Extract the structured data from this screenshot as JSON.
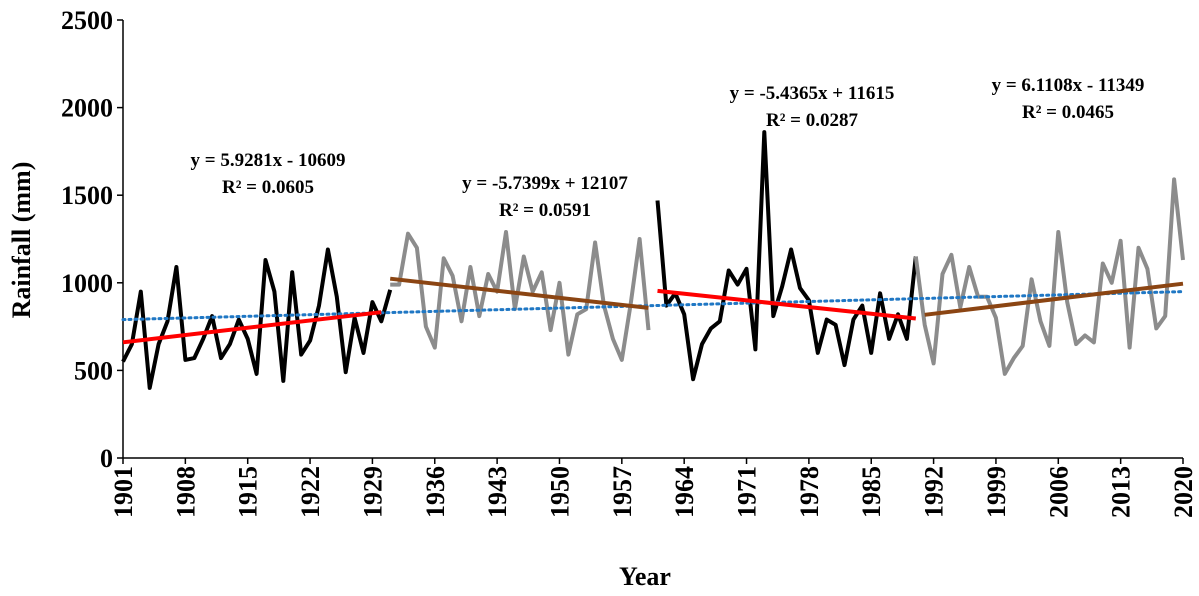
{
  "chart_data": {
    "type": "line",
    "xlabel": "Year",
    "ylabel": "Rainfall (mm)",
    "xlim": [
      1901,
      2020
    ],
    "xticks": [
      1901,
      1908,
      1915,
      1922,
      1929,
      1936,
      1943,
      1950,
      1957,
      1964,
      1971,
      1978,
      1985,
      1992,
      1999,
      2006,
      2013,
      2020
    ],
    "ylim": [
      0,
      2500
    ],
    "yticks": [
      0,
      500,
      1000,
      1500,
      2000,
      2500
    ],
    "series": [
      {
        "color": "#000000",
        "x": [
          1901,
          1902,
          1903,
          1904,
          1905,
          1906,
          1907,
          1908,
          1909,
          1910,
          1911,
          1912,
          1913,
          1914,
          1915,
          1916,
          1917,
          1918,
          1919,
          1920,
          1921,
          1922,
          1923,
          1924,
          1925,
          1926,
          1927,
          1928,
          1929,
          1930,
          1931
        ],
        "values": [
          550,
          650,
          950,
          400,
          650,
          780,
          1090,
          560,
          570,
          680,
          810,
          570,
          650,
          790,
          680,
          480,
          1130,
          950,
          440,
          1060,
          590,
          670,
          870,
          1190,
          920,
          490,
          800,
          600,
          890,
          780,
          960
        ]
      },
      {
        "color": "#8c8c8c",
        "x": [
          1931,
          1932,
          1933,
          1934,
          1935,
          1936,
          1937,
          1938,
          1939,
          1940,
          1941,
          1942,
          1943,
          1944,
          1945,
          1946,
          1947,
          1948,
          1949,
          1950,
          1951,
          1952,
          1953,
          1954,
          1955,
          1956,
          1957,
          1958,
          1959,
          1960
        ],
        "values": [
          990,
          990,
          1280,
          1200,
          750,
          630,
          1140,
          1040,
          780,
          1090,
          810,
          1050,
          950,
          1290,
          850,
          1150,
          950,
          1060,
          730,
          1000,
          590,
          820,
          850,
          1230,
          870,
          680,
          560,
          880,
          1250,
          730
        ]
      },
      {
        "color": "#000000",
        "x": [
          1961,
          1962,
          1963,
          1964,
          1965,
          1966,
          1967,
          1968,
          1969,
          1970,
          1971,
          1972,
          1973,
          1974,
          1975,
          1976,
          1977,
          1978,
          1979,
          1980,
          1981,
          1982,
          1983,
          1984,
          1985,
          1986,
          1987,
          1988,
          1989,
          1990
        ],
        "values": [
          1470,
          870,
          940,
          820,
          450,
          650,
          740,
          780,
          1070,
          990,
          1080,
          620,
          1860,
          810,
          980,
          1190,
          970,
          900,
          600,
          790,
          760,
          530,
          790,
          870,
          600,
          940,
          680,
          820,
          680,
          1150
        ]
      },
      {
        "color": "#8c8c8c",
        "x": [
          1990,
          1991,
          1992,
          1993,
          1994,
          1995,
          1996,
          1997,
          1998,
          1999,
          2000,
          2001,
          2002,
          2003,
          2004,
          2005,
          2006,
          2007,
          2008,
          2009,
          2010,
          2011,
          2012,
          2013,
          2014,
          2015,
          2016,
          2017,
          2018,
          2019,
          2020
        ],
        "values": [
          1150,
          760,
          540,
          1050,
          1160,
          860,
          1090,
          920,
          920,
          800,
          480,
          570,
          640,
          1020,
          780,
          640,
          1290,
          890,
          650,
          700,
          660,
          1110,
          1000,
          1240,
          630,
          1200,
          1080,
          740,
          810,
          1590,
          1130
        ]
      }
    ],
    "trends": [
      {
        "color": "#1f77c4",
        "style": "dotted",
        "x": [
          1901,
          2020
        ],
        "values": [
          790,
          950
        ]
      },
      {
        "color": "#ff0000",
        "x": [
          1901,
          1930
        ],
        "values": [
          660.3,
          832.0
        ]
      },
      {
        "color": "#8b4513",
        "x": [
          1931,
          1960
        ],
        "values": [
          1023.3,
          857.0
        ]
      },
      {
        "color": "#ff0000",
        "x": [
          1961,
          1990
        ],
        "values": [
          954.0,
          796.4
        ]
      },
      {
        "color": "#8b4513",
        "x": [
          1991,
          2020
        ],
        "values": [
          817.6,
          994.8
        ]
      }
    ],
    "annotations": [
      [
        "y = 5.9281x - 10609",
        "R² = 0.0605"
      ],
      [
        "y = -5.7399x + 12107",
        "R² = 0.0591"
      ],
      [
        "y = -5.4365x + 11615",
        "R² = 0.0287"
      ],
      [
        "y = 6.1108x - 11349",
        "R² = 0.0465"
      ]
    ]
  }
}
